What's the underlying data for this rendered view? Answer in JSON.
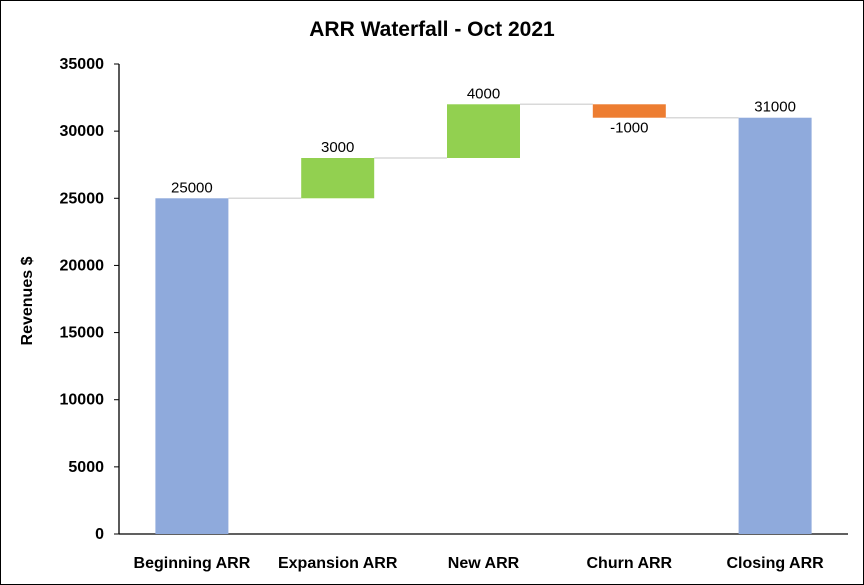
{
  "chart_data": {
    "type": "bar",
    "subtype": "waterfall",
    "title": "ARR Waterfall - Oct 2021",
    "xlabel": "",
    "ylabel": "Revenues $",
    "ylim": [
      0,
      35000
    ],
    "yticks": [
      0,
      5000,
      10000,
      15000,
      20000,
      25000,
      30000,
      35000
    ],
    "grid": false,
    "legend": "none",
    "categories": [
      "Beginning ARR",
      "Expansion ARR",
      "New ARR",
      "Churn ARR",
      "Closing ARR"
    ],
    "bars": [
      {
        "category": "Beginning ARR",
        "kind": "total",
        "base": 0,
        "value": 25000,
        "label": "25000",
        "color": "#8faadc"
      },
      {
        "category": "Expansion ARR",
        "kind": "increase",
        "base": 25000,
        "value": 3000,
        "label": "3000",
        "color": "#92d050"
      },
      {
        "category": "New ARR",
        "kind": "increase",
        "base": 28000,
        "value": 4000,
        "label": "4000",
        "color": "#92d050"
      },
      {
        "category": "Churn ARR",
        "kind": "decrease",
        "base": 32000,
        "value": -1000,
        "label": "-1000",
        "color": "#ed7d31"
      },
      {
        "category": "Closing ARR",
        "kind": "total",
        "base": 0,
        "value": 31000,
        "label": "31000",
        "color": "#8faadc"
      }
    ],
    "connector_color": "#d9d9d9"
  }
}
